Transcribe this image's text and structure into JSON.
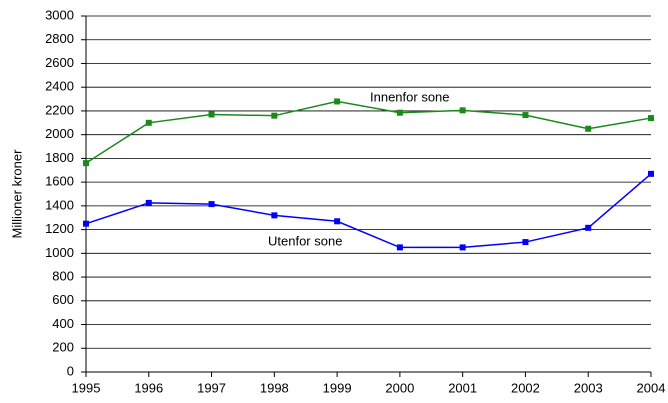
{
  "chart_data": {
    "type": "line",
    "y_label": "Millioner kroner",
    "x": [
      1995,
      1996,
      1997,
      1998,
      1999,
      2000,
      2001,
      2002,
      2003,
      2004
    ],
    "xlim": [
      1995,
      2004
    ],
    "xticks": [
      1995,
      1996,
      1997,
      1998,
      1999,
      2000,
      2001,
      2002,
      2003,
      2004
    ],
    "ylim": [
      0,
      3000
    ],
    "yticks": [
      0,
      200,
      400,
      600,
      800,
      1000,
      1200,
      1400,
      1600,
      1800,
      2000,
      2200,
      2400,
      2600,
      2800,
      3000
    ],
    "grid": true,
    "series": [
      {
        "name": "Innenfor sone",
        "color": "#1a8a1a",
        "values": [
          1760,
          2100,
          2170,
          2160,
          2280,
          2185,
          2205,
          2165,
          2050,
          2140
        ]
      },
      {
        "name": "Utenfor sone",
        "color": "#0000ff",
        "values": [
          1250,
          1425,
          1415,
          1320,
          1270,
          1050,
          1050,
          1095,
          1215,
          1670
        ]
      }
    ]
  }
}
